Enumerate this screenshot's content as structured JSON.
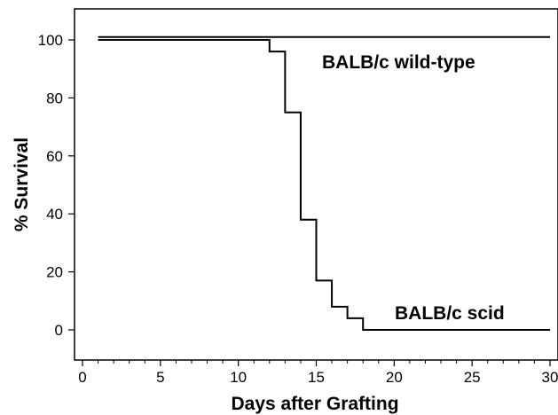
{
  "chart_data": {
    "type": "line",
    "step": true,
    "xlabel": "Days after Grafting",
    "ylabel": "% Survival",
    "xlim": [
      0,
      30
    ],
    "ylim": [
      -10,
      110
    ],
    "xticks": [
      0,
      5,
      10,
      15,
      20,
      25,
      30
    ],
    "xticks_minor": [
      1,
      2,
      3,
      4,
      6,
      7,
      8,
      9,
      11,
      12,
      13,
      14,
      16,
      17,
      18,
      19,
      21,
      22,
      23,
      24,
      26,
      27,
      28,
      29
    ],
    "yticks": [
      0,
      20,
      40,
      60,
      80,
      100
    ],
    "grid": false,
    "legend": "inline labels",
    "series": [
      {
        "name": "BALB/c wild-type",
        "color": "#000000",
        "x": [
          1,
          30
        ],
        "y": [
          101,
          101
        ]
      },
      {
        "name": "BALB/c scid",
        "color": "#000000",
        "x": [
          1,
          12,
          13,
          14,
          15,
          16,
          17,
          18,
          30
        ],
        "y": [
          100,
          96,
          75,
          38,
          17,
          8,
          4,
          0,
          0
        ]
      }
    ]
  }
}
